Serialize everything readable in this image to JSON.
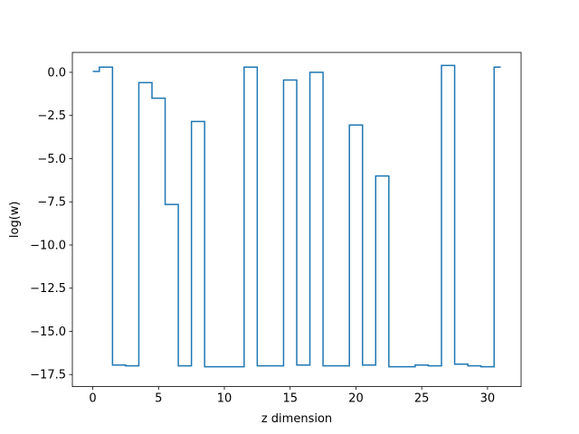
{
  "chart_data": {
    "type": "line",
    "drawstyle": "steps-mid",
    "title": "",
    "xlabel": "z dimension",
    "ylabel": "log(w)",
    "xlim": [
      -1.55,
      32.55
    ],
    "ylim": [
      -18.2,
      1.15
    ],
    "x_ticks": [
      0,
      5,
      10,
      15,
      20,
      25,
      30
    ],
    "x_tick_labels": [
      "0",
      "5",
      "10",
      "15",
      "20",
      "25",
      "30"
    ],
    "y_ticks": [
      0.0,
      -2.5,
      -5.0,
      -7.5,
      -10.0,
      -12.5,
      -15.0,
      -17.5
    ],
    "y_tick_labels": [
      "0.0",
      "−2.5",
      "−5.0",
      "−7.5",
      "−10.0",
      "−12.5",
      "−15.0",
      "−17.5"
    ],
    "grid": false,
    "line_color": "#1f77b4",
    "series": [
      {
        "x": [
          0,
          1,
          2,
          3,
          4,
          5,
          6,
          7,
          8,
          9,
          10,
          11,
          12,
          13,
          14,
          15,
          16,
          17,
          18,
          19,
          20,
          21,
          22,
          23,
          24,
          25,
          26,
          27,
          28,
          29,
          30,
          31
        ],
        "values": [
          0.05,
          0.3,
          -16.95,
          -17.0,
          -0.6,
          -1.5,
          -7.65,
          -17.0,
          -2.85,
          -17.05,
          -17.05,
          -17.05,
          0.3,
          -17.0,
          -17.0,
          -0.45,
          -16.95,
          0.0,
          -17.0,
          -17.0,
          -3.05,
          -16.95,
          -6.0,
          -17.05,
          -17.05,
          -16.95,
          -17.0,
          0.4,
          -16.9,
          -17.0,
          -17.05,
          0.3
        ]
      }
    ]
  }
}
